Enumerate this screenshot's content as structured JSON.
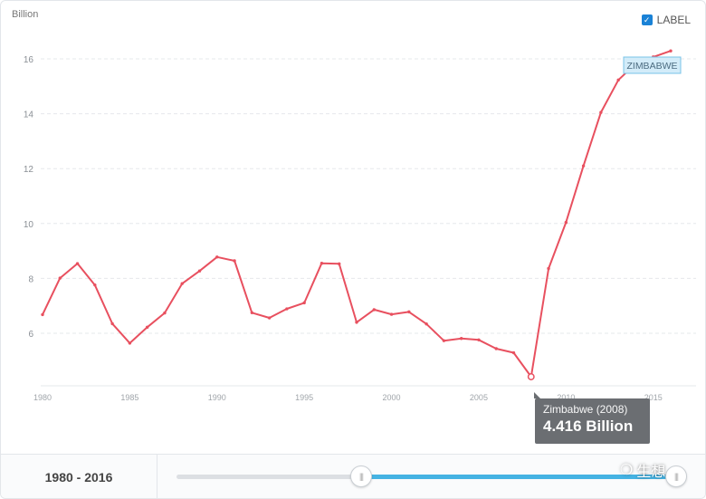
{
  "chart_data": {
    "type": "line",
    "ylabel": "Billion",
    "ylim": [
      4,
      17
    ],
    "yticks": [
      6,
      8,
      10,
      12,
      14,
      16
    ],
    "xlim": [
      1980,
      2016
    ],
    "xticks": [
      1980,
      1985,
      1990,
      1995,
      2000,
      2005,
      2010,
      2015
    ],
    "grid": true,
    "series": [
      {
        "name": "ZIMBABWE",
        "color": "#e8505f",
        "x": [
          1980,
          1981,
          1982,
          1983,
          1984,
          1985,
          1986,
          1987,
          1988,
          1989,
          1990,
          1991,
          1992,
          1993,
          1994,
          1995,
          1996,
          1997,
          1998,
          1999,
          2000,
          2001,
          2002,
          2003,
          2004,
          2005,
          2006,
          2007,
          2008,
          2009,
          2010,
          2011,
          2012,
          2013,
          2014,
          2015,
          2016
        ],
        "values": [
          6.68,
          8.01,
          8.54,
          7.76,
          6.35,
          5.64,
          6.22,
          6.74,
          7.81,
          8.27,
          8.78,
          8.64,
          6.75,
          6.56,
          6.89,
          7.11,
          8.55,
          8.53,
          6.4,
          6.86,
          6.69,
          6.78,
          6.34,
          5.73,
          5.81,
          5.76,
          5.44,
          5.29,
          4.416,
          8.36,
          10.04,
          12.1,
          14.05,
          15.23,
          15.83,
          16.07,
          16.29
        ]
      }
    ],
    "tooltip": {
      "title": "Zimbabwe (2008)",
      "value": "4.416 Billion"
    }
  },
  "label_toggle": {
    "label": "LABEL",
    "checked": true
  },
  "slider": {
    "range_text": "1980 - 2016"
  },
  "watermark": {
    "text": "生想"
  }
}
